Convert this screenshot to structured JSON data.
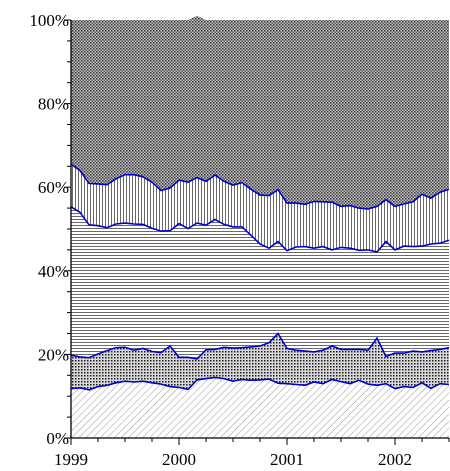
{
  "chart_data": {
    "type": "area",
    "stacked": true,
    "percent": true,
    "x_ticks": [
      "1999",
      "2000",
      "2001",
      "2002"
    ],
    "y_ticks": [
      "0%",
      "20%",
      "40%",
      "60%",
      "80%",
      "100%"
    ],
    "xlim": [
      1999,
      2002.5
    ],
    "ylim": [
      0,
      100
    ],
    "grid": false,
    "boundary_color": "#0000cc",
    "x": [
      1999.0,
      1999.083,
      1999.167,
      1999.25,
      1999.333,
      1999.417,
      1999.5,
      1999.583,
      1999.667,
      1999.75,
      1999.833,
      1999.917,
      2000.0,
      2000.083,
      2000.167,
      2000.25,
      2000.333,
      2000.417,
      2000.5,
      2000.583,
      2000.667,
      2000.75,
      2000.833,
      2000.917,
      2001.0,
      2001.083,
      2001.167,
      2001.25,
      2001.333,
      2001.417,
      2001.5,
      2001.583,
      2001.667,
      2001.75,
      2001.833,
      2001.917,
      2002.0,
      2002.083,
      2002.167,
      2002.25,
      2002.333,
      2002.417,
      2002.5
    ],
    "series": [
      {
        "fill": "diagonal-light",
        "values": [
          11.8,
          12.0,
          11.5,
          12.3,
          12.6,
          13.2,
          13.6,
          13.4,
          13.6,
          13.2,
          12.9,
          12.3,
          12.1,
          11.6,
          13.9,
          14.2,
          14.5,
          14.2,
          13.6,
          14.0,
          13.8,
          13.9,
          14.1,
          13.1,
          13.0,
          12.8,
          12.6,
          13.4,
          13.0,
          14.0,
          13.5,
          13.0,
          13.8,
          12.9,
          12.6,
          13.0,
          11.8,
          12.3,
          12.1,
          13.2,
          11.9,
          13.0,
          12.8
        ]
      },
      {
        "fill": "dense-dots",
        "values": [
          8.0,
          7.4,
          7.7,
          7.8,
          8.3,
          8.4,
          8.1,
          7.6,
          7.8,
          7.5,
          7.5,
          9.7,
          7.2,
          7.7,
          5.0,
          6.9,
          6.7,
          7.5,
          7.9,
          7.6,
          8.0,
          8.1,
          8.7,
          11.9,
          8.4,
          8.2,
          8.2,
          7.2,
          8.0,
          8.0,
          7.7,
          8.2,
          7.4,
          8.1,
          11.3,
          6.5,
          8.5,
          8.0,
          8.7,
          7.4,
          9.0,
          8.2,
          8.8
        ]
      },
      {
        "fill": "horizontal-lines",
        "values": [
          35.5,
          34.6,
          31.8,
          30.7,
          29.4,
          29.6,
          29.7,
          30.2,
          29.7,
          29.5,
          29.1,
          27.6,
          32.0,
          30.8,
          32.5,
          29.8,
          31.1,
          29.4,
          29.0,
          28.9,
          26.7,
          24.4,
          22.6,
          22.0,
          23.4,
          24.7,
          25.0,
          24.8,
          24.8,
          23.0,
          24.4,
          24.2,
          23.7,
          24.0,
          20.6,
          27.5,
          24.7,
          25.6,
          25.0,
          25.3,
          25.5,
          25.4,
          25.7
        ]
      },
      {
        "fill": "vertical-lines",
        "values": [
          10.2,
          10.0,
          9.9,
          10.0,
          10.3,
          10.8,
          11.6,
          11.8,
          11.4,
          11.0,
          9.7,
          10.2,
          10.4,
          11.1,
          10.9,
          10.5,
          10.6,
          10.3,
          10.0,
          10.6,
          11.0,
          11.7,
          12.6,
          12.4,
          11.4,
          10.5,
          10.1,
          11.2,
          10.7,
          11.4,
          9.8,
          10.2,
          10.1,
          9.8,
          10.9,
          10.0,
          10.4,
          10.1,
          10.7,
          12.4,
          11.0,
          12.2,
          12.2
        ]
      },
      {
        "fill": "dark-crosshatch",
        "values": [
          34.5,
          36.0,
          39.1,
          39.2,
          39.4,
          38.0,
          37.0,
          37.0,
          37.5,
          38.8,
          40.8,
          40.2,
          38.3,
          38.8,
          38.7,
          38.6,
          37.1,
          38.6,
          39.5,
          38.9,
          40.5,
          41.9,
          42.0,
          40.6,
          43.8,
          43.8,
          44.1,
          43.4,
          43.5,
          43.6,
          44.6,
          44.4,
          45.0,
          45.2,
          44.6,
          43.0,
          44.6,
          44.0,
          43.5,
          41.7,
          42.6,
          41.2,
          40.5
        ]
      }
    ]
  }
}
